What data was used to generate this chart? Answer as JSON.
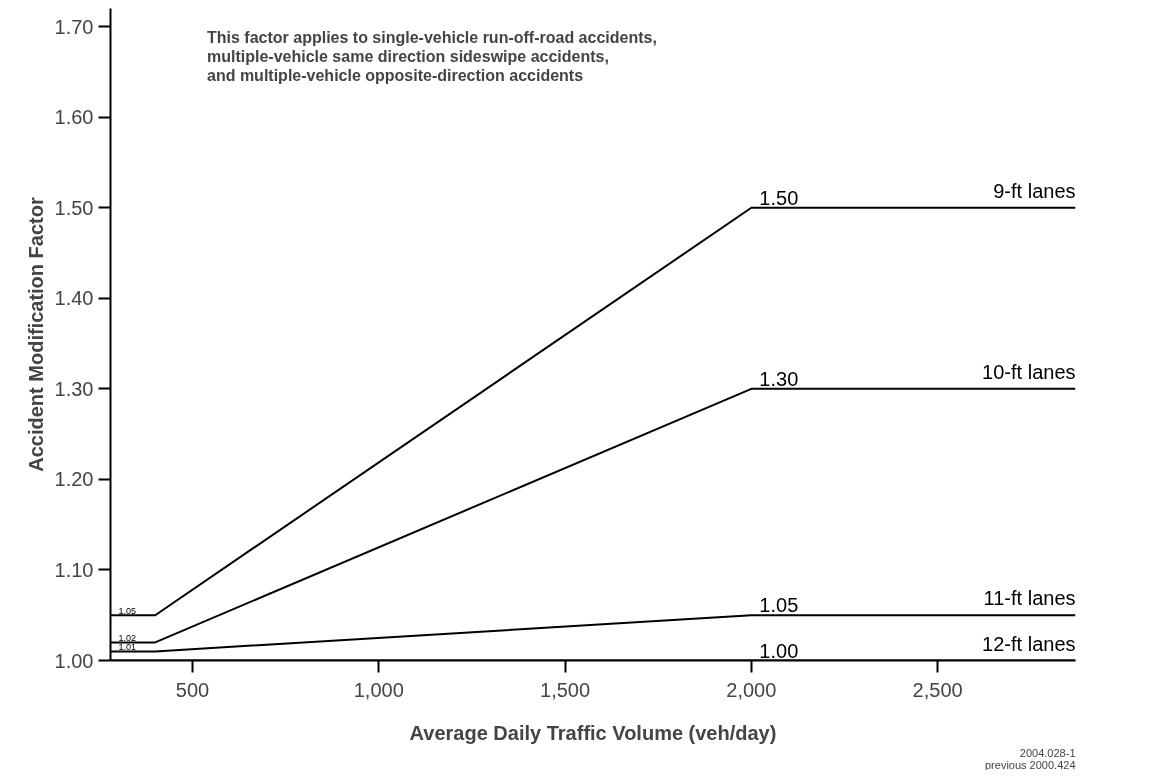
{
  "chart_data": {
    "type": "line",
    "xlabel": "Average Daily Traffic Volume (veh/day)",
    "ylabel": "Accident Modification Factor",
    "xlim": [
      280,
      2870
    ],
    "xticks": [
      {
        "value": 500,
        "label": "500"
      },
      {
        "value": 1000,
        "label": "1,000"
      },
      {
        "value": 1500,
        "label": "1,500"
      },
      {
        "value": 2000,
        "label": "2,000"
      },
      {
        "value": 2500,
        "label": "2,500"
      }
    ],
    "ylim": [
      1.0,
      1.72
    ],
    "yticks": [
      {
        "value": 1.0,
        "label": "1.00"
      },
      {
        "value": 1.1,
        "label": "1.10"
      },
      {
        "value": 1.2,
        "label": "1.20"
      },
      {
        "value": 1.3,
        "label": "1.30"
      },
      {
        "value": 1.4,
        "label": "1.40"
      },
      {
        "value": 1.5,
        "label": "1.50"
      },
      {
        "value": 1.6,
        "label": "1.60"
      },
      {
        "value": 1.7,
        "label": "1.70"
      }
    ],
    "grid": false,
    "marker": "none",
    "line_style": "solid",
    "series": [
      {
        "name": "9-ft lanes",
        "color": "#000000",
        "x": [
          280,
          400,
          2000,
          2870
        ],
        "values": [
          1.05,
          1.05,
          1.5,
          1.5
        ],
        "value_labels": [
          "1.05",
          null,
          "1.50",
          null
        ]
      },
      {
        "name": "10-ft lanes",
        "color": "#000000",
        "x": [
          280,
          400,
          2000,
          2870
        ],
        "values": [
          1.02,
          1.02,
          1.3,
          1.3
        ],
        "value_labels": [
          "1.02",
          null,
          "1.30",
          null
        ]
      },
      {
        "name": "11-ft lanes",
        "color": "#000000",
        "x": [
          280,
          400,
          2000,
          2870
        ],
        "values": [
          1.01,
          1.01,
          1.05,
          1.05
        ],
        "value_labels": [
          "1.01",
          null,
          "1.05",
          null
        ]
      },
      {
        "name": "12-ft lanes",
        "color": "#000000",
        "x": [
          280,
          400,
          2000,
          2870
        ],
        "values": [
          1.0,
          1.0,
          1.0,
          1.0
        ],
        "value_labels": [
          null,
          null,
          "1.00",
          null
        ]
      }
    ],
    "annotations": [
      "This factor applies to single-vehicle run-off-road accidents,\nmultiple-vehicle same direction sideswipe accidents,\nand multiple-vehicle opposite-direction accidents",
      "2004.028-1\nprevious 2000.424"
    ]
  }
}
